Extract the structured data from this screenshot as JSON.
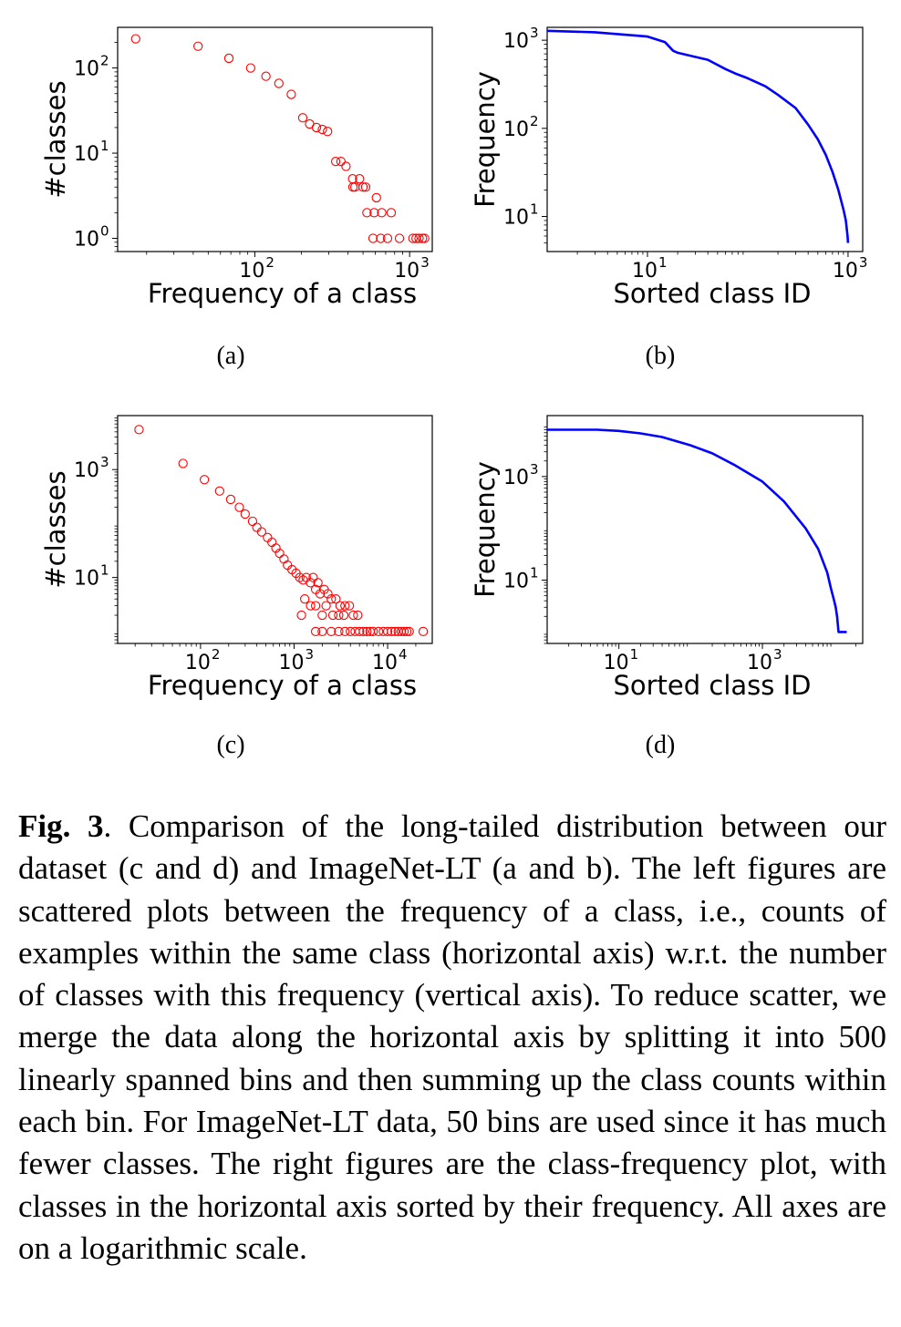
{
  "chart_data": [
    {
      "panel": "(a)",
      "type": "scatter",
      "xlabel": "Frequency of a class",
      "ylabel": "#classes",
      "xscale": "log",
      "yscale": "log",
      "xlim": [
        13,
        1400
      ],
      "ylim": [
        0.7,
        300
      ],
      "xticks": [
        100,
        1000
      ],
      "xtick_labels": [
        "10^2",
        "10^3"
      ],
      "yticks": [
        1,
        10,
        100
      ],
      "ytick_labels": [
        "10^0",
        "10^1",
        "10^2"
      ],
      "marker": "open-circle",
      "color": "#ff0000",
      "points": [
        [
          17,
          220
        ],
        [
          43,
          180
        ],
        [
          68,
          130
        ],
        [
          94,
          100
        ],
        [
          118,
          80
        ],
        [
          143,
          66
        ],
        [
          172,
          49
        ],
        [
          204,
          26
        ],
        [
          226,
          22
        ],
        [
          250,
          20
        ],
        [
          273,
          19
        ],
        [
          295,
          18
        ],
        [
          333,
          8
        ],
        [
          360,
          8
        ],
        [
          388,
          7
        ],
        [
          428,
          5
        ],
        [
          443,
          4
        ],
        [
          475,
          5
        ],
        [
          520,
          4
        ],
        [
          430,
          4
        ],
        [
          500,
          4
        ],
        [
          530,
          2
        ],
        [
          590,
          2
        ],
        [
          660,
          2
        ],
        [
          760,
          2
        ],
        [
          610,
          3
        ],
        [
          580,
          1
        ],
        [
          650,
          1
        ],
        [
          720,
          1
        ],
        [
          860,
          1
        ],
        [
          1050,
          1
        ],
        [
          1100,
          1
        ],
        [
          1150,
          1
        ],
        [
          1210,
          1
        ],
        [
          1250,
          1
        ]
      ]
    },
    {
      "panel": "(b)",
      "type": "line",
      "xlabel": "Sorted class ID",
      "ylabel": "Frequency",
      "xscale": "log",
      "yscale": "log",
      "xlim": [
        1,
        1400
      ],
      "ylim": [
        4,
        1400
      ],
      "xticks": [
        10,
        1000
      ],
      "xtick_labels": [
        "10^1",
        "10^3"
      ],
      "yticks": [
        10,
        100,
        1000
      ],
      "ytick_labels": [
        "10^1",
        "10^2",
        "10^3"
      ],
      "color": "#0000ff",
      "x": [
        1,
        3,
        10,
        15,
        18,
        20,
        40,
        60,
        75,
        100,
        150,
        200,
        300,
        400,
        500,
        600,
        700,
        800,
        900,
        950,
        990,
        1000
      ],
      "y": [
        1280,
        1230,
        1100,
        950,
        760,
        720,
        600,
        470,
        420,
        370,
        300,
        240,
        170,
        110,
        75,
        50,
        32,
        20,
        12,
        9,
        6,
        5
      ]
    },
    {
      "panel": "(c)",
      "type": "scatter",
      "xlabel": "Frequency of a class",
      "ylabel": "#classes",
      "xscale": "log",
      "yscale": "log",
      "xlim": [
        13,
        30000
      ],
      "ylim": [
        0.6,
        10000
      ],
      "xticks": [
        100,
        1000,
        10000
      ],
      "xtick_labels": [
        "10^2",
        "10^3",
        "10^4"
      ],
      "yticks": [
        10,
        1000
      ],
      "ytick_labels": [
        "10^1",
        "10^3"
      ],
      "marker": "open-circle",
      "color": "#ff0000",
      "points": [
        [
          22,
          5500
        ],
        [
          65,
          1300
        ],
        [
          110,
          650
        ],
        [
          160,
          400
        ],
        [
          210,
          280
        ],
        [
          260,
          200
        ],
        [
          300,
          150
        ],
        [
          360,
          110
        ],
        [
          400,
          85
        ],
        [
          450,
          70
        ],
        [
          520,
          55
        ],
        [
          580,
          45
        ],
        [
          640,
          35
        ],
        [
          700,
          28
        ],
        [
          780,
          22
        ],
        [
          850,
          17
        ],
        [
          950,
          14
        ],
        [
          1050,
          12
        ],
        [
          1150,
          10
        ],
        [
          1250,
          9
        ],
        [
          1350,
          10
        ],
        [
          1500,
          8
        ],
        [
          1600,
          10
        ],
        [
          1700,
          6
        ],
        [
          1800,
          8
        ],
        [
          1900,
          5
        ],
        [
          2100,
          6
        ],
        [
          2300,
          5
        ],
        [
          2500,
          4
        ],
        [
          2800,
          4
        ],
        [
          3100,
          3
        ],
        [
          3500,
          3
        ],
        [
          3900,
          3
        ],
        [
          4300,
          2
        ],
        [
          4800,
          2
        ],
        [
          1300,
          4
        ],
        [
          1500,
          3
        ],
        [
          1700,
          3
        ],
        [
          2000,
          2
        ],
        [
          2200,
          3
        ],
        [
          2600,
          2
        ],
        [
          3000,
          2
        ],
        [
          3400,
          2
        ],
        [
          1200,
          2
        ],
        [
          1700,
          1
        ],
        [
          2000,
          1
        ],
        [
          2500,
          1
        ],
        [
          3000,
          1
        ],
        [
          3500,
          1
        ],
        [
          4000,
          1
        ],
        [
          4500,
          1
        ],
        [
          5000,
          1
        ],
        [
          5500,
          1
        ],
        [
          6000,
          1
        ],
        [
          6500,
          1
        ],
        [
          7000,
          1
        ],
        [
          8000,
          1
        ],
        [
          9000,
          1
        ],
        [
          10000,
          1
        ],
        [
          11000,
          1
        ],
        [
          12000,
          1
        ],
        [
          13000,
          1
        ],
        [
          14000,
          1
        ],
        [
          15000,
          1
        ],
        [
          16000,
          1
        ],
        [
          17000,
          1
        ],
        [
          24000,
          1
        ]
      ]
    },
    {
      "panel": "(d)",
      "type": "line",
      "xlabel": "Sorted class ID",
      "ylabel": "Frequency",
      "xscale": "log",
      "yscale": "log",
      "xlim": [
        1,
        25000
      ],
      "ylim": [
        0.6,
        15000
      ],
      "xticks": [
        10,
        1000
      ],
      "xtick_labels": [
        "10^1",
        "10^3"
      ],
      "yticks": [
        10,
        1000
      ],
      "ytick_labels": [
        "10^1",
        "10^3"
      ],
      "color": "#0000ff",
      "x": [
        1,
        5,
        10,
        20,
        40,
        100,
        200,
        400,
        1000,
        2000,
        4000,
        6000,
        8000,
        9000,
        10000,
        10500,
        11000,
        11500,
        13000,
        15000
      ],
      "y": [
        8000,
        8000,
        7600,
        6800,
        5800,
        4000,
        2800,
        1700,
        800,
        330,
        100,
        40,
        14,
        7,
        4,
        3,
        2,
        1,
        1,
        1
      ]
    }
  ],
  "panel_labels": [
    "(a)",
    "(b)",
    "(c)",
    "(d)"
  ],
  "caption": {
    "label": "Fig. 3",
    "text": ". Comparison of the long-tailed distribution between our dataset (c and d) and ImageNet-LT (a and b). The left figures are scattered plots between the frequency of a class, i.e., counts of examples within the same class (horizontal axis) w.r.t. the number of classes with this frequency (vertical axis). To reduce scatter, we merge the data along the horizontal axis by splitting it into 500 linearly spanned bins and then summing up the class counts within each bin. For ImageNet-LT data, 50 bins are used since it has much fewer classes. The right figures are the class-frequency plot, with classes in the horizontal axis sorted by their frequency. All axes are on a logarithmic scale."
  }
}
